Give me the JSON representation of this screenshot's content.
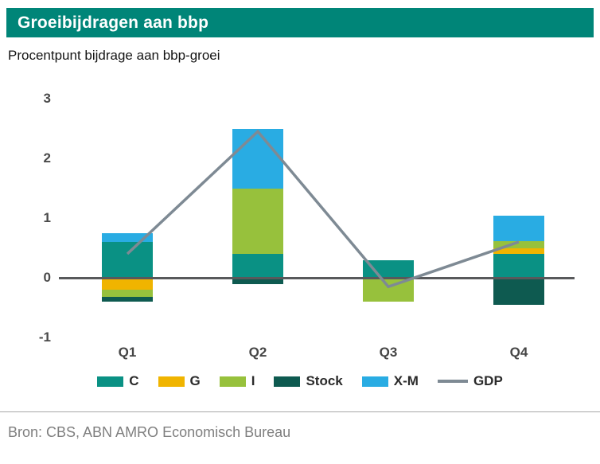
{
  "header": {
    "title": "Groeibijdragen aan bbp"
  },
  "subtitle": "Procentpunt bijdrage aan bbp-groei",
  "source": "Bron: CBS, ABN AMRO Economisch Bureau",
  "colors": {
    "header_bg": "#008578",
    "C": "#0a9184",
    "G": "#f0b400",
    "I": "#97c13c",
    "Stock": "#0e5a50",
    "X-M": "#29ace3",
    "GDP": "#7e8a94",
    "axis": "#58595b"
  },
  "chart_data": {
    "type": "bar",
    "subtype": "stacked-bars-with-line-overlay",
    "title": "Groeibijdragen aan bbp",
    "subtitle": "Procentpunt bijdrage aan bbp-groei",
    "categories": [
      "Q1",
      "Q2",
      "Q3",
      "Q4"
    ],
    "series": [
      {
        "name": "C",
        "type": "bar",
        "values": [
          0.6,
          0.4,
          0.3,
          0.4
        ]
      },
      {
        "name": "G",
        "type": "bar",
        "values": [
          -0.2,
          0,
          0,
          0.1
        ]
      },
      {
        "name": "I",
        "type": "bar",
        "values": [
          -0.12,
          1.1,
          -0.4,
          0.12
        ]
      },
      {
        "name": "Stock",
        "type": "bar",
        "values": [
          -0.08,
          -0.1,
          0,
          -0.45
        ]
      },
      {
        "name": "X-M",
        "type": "bar",
        "values": [
          0.15,
          1.0,
          0,
          0.42
        ]
      },
      {
        "name": "GDP",
        "type": "line",
        "values": [
          0.4,
          2.45,
          -0.15,
          0.6
        ]
      }
    ],
    "ylim": [
      -1,
      3
    ],
    "yticks": [
      3,
      2,
      1,
      0,
      -1
    ],
    "grid": false,
    "legend_position": "bottom"
  }
}
